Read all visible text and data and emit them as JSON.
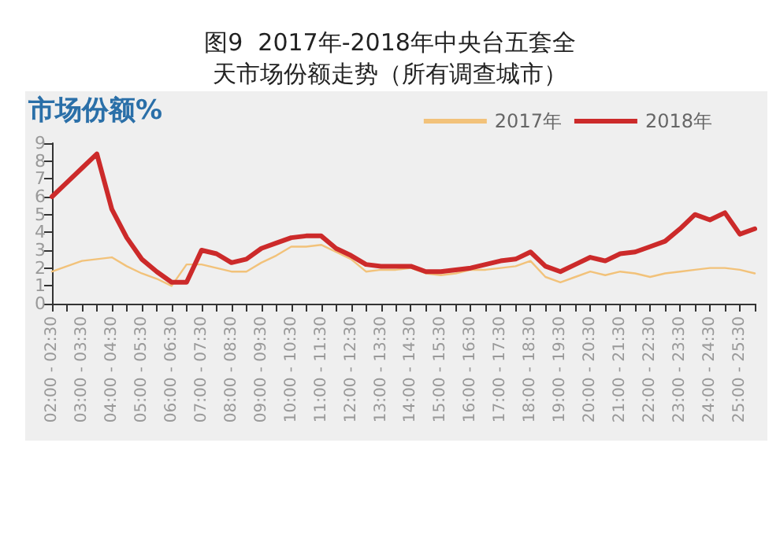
{
  "chart_data": {
    "type": "line",
    "title": "图9  2017年-2018年中央台五套全天市场份额走势（所有调查城市）",
    "ylabel": "市场份额%",
    "categories": [
      "02:00 - 02:30",
      null,
      "03:00 - 03:30",
      null,
      "04:00 - 04:30",
      null,
      "05:00 - 05:30",
      null,
      "06:00 - 06:30",
      null,
      "07:00 - 07:30",
      null,
      "08:00 - 08:30",
      null,
      "09:00 - 09:30",
      null,
      "10:00 - 10:30",
      null,
      "11:00 - 11:30",
      null,
      "12:00 - 12:30",
      null,
      "13:00 - 13:30",
      null,
      "14:00 - 14:30",
      null,
      "15:00 - 15:30",
      null,
      "16:00 - 16:30",
      null,
      "17:00 - 17:30",
      null,
      "18:00 - 18:30",
      null,
      "19:00 - 19:30",
      null,
      "20:00 - 20:30",
      null,
      "21:00 - 21:30",
      null,
      "22:00 - 22:30",
      null,
      "23:00 - 23:30",
      null,
      "24:00 - 24:30",
      null,
      "25:00 - 25:30",
      null
    ],
    "series": [
      {
        "name": "2017年",
        "color": "#f2c27a",
        "values": [
          1.8,
          2.1,
          2.4,
          2.5,
          2.6,
          2.1,
          1.7,
          1.4,
          1.0,
          2.2,
          2.2,
          2.0,
          1.8,
          1.8,
          2.3,
          2.7,
          3.2,
          3.2,
          3.3,
          2.9,
          2.5,
          1.8,
          1.9,
          1.9,
          2.0,
          1.7,
          1.6,
          1.7,
          1.9,
          1.9,
          2.0,
          2.1,
          2.4,
          1.5,
          1.2,
          1.5,
          1.8,
          1.6,
          1.8,
          1.7,
          1.5,
          1.7,
          1.8,
          1.9,
          2.0,
          2.0,
          1.9,
          1.7
        ]
      },
      {
        "name": "2018年",
        "color": "#cc2a2a",
        "values": [
          6.0,
          6.8,
          7.6,
          8.4,
          5.3,
          3.7,
          2.5,
          1.8,
          1.2,
          1.2,
          3.0,
          2.8,
          2.3,
          2.5,
          3.1,
          3.4,
          3.7,
          3.8,
          3.8,
          3.1,
          2.7,
          2.2,
          2.1,
          2.1,
          2.1,
          1.8,
          1.8,
          1.9,
          2.0,
          2.2,
          2.4,
          2.5,
          2.9,
          2.1,
          1.8,
          2.2,
          2.6,
          2.4,
          2.8,
          2.9,
          3.2,
          3.5,
          4.2,
          5.0,
          4.7,
          5.1,
          3.9,
          4.2
        ]
      }
    ],
    "ylim": [
      0,
      9
    ],
    "yticks": [
      0,
      1,
      2,
      3,
      4,
      5,
      6,
      7,
      8,
      9
    ],
    "grid": false,
    "legend": "top right",
    "marker": "none",
    "line_style": "solid"
  }
}
